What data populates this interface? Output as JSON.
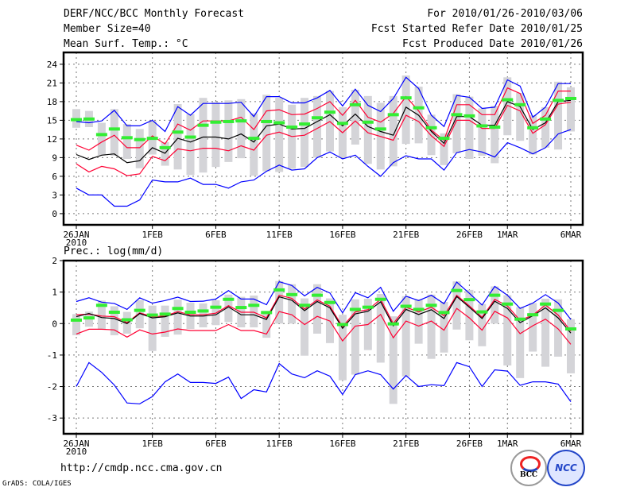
{
  "header": {
    "title": "DERF/NCC/BCC Monthly Forecast",
    "member_size": "Member Size=40",
    "variable": "Mean Surf. Temp.: °C",
    "period": "For 2010/01/26-2010/03/06",
    "started": "Fcst Started Refer Date 2010/01/25",
    "produced": "Fcst Produced Date 2010/01/26"
  },
  "precip_label": "Prec.: log(mm/d)",
  "footer": {
    "url": "http://cmdp.ncc.cma.gov.cn",
    "credit": "GrADS: COLA/IGES",
    "logo_bcc": "BCC",
    "logo_ncc": "NCC"
  },
  "colors": {
    "max_min": "#0000ff",
    "spread": "#ff0033",
    "mean": "#000000",
    "obs": "#33ee33",
    "box": "#d4d4d8"
  },
  "chart_data": [
    {
      "type": "line",
      "title": "Mean Surf. Temp.: °C",
      "x_start": "2010-01-26",
      "days": 40,
      "xticks": [
        {
          "day": 0,
          "label": "26JAN",
          "sub": "2010"
        },
        {
          "day": 6,
          "label": "1FEB"
        },
        {
          "day": 11,
          "label": "6FEB"
        },
        {
          "day": 16,
          "label": "11FEB"
        },
        {
          "day": 21,
          "label": "16FEB"
        },
        {
          "day": 26,
          "label": "21FEB"
        },
        {
          "day": 31,
          "label": "26FEB"
        },
        {
          "day": 34,
          "label": "1MAR"
        },
        {
          "day": 39,
          "label": "6MAR"
        }
      ],
      "yticks": [
        0,
        3,
        6,
        9,
        12,
        15,
        18,
        21,
        24
      ],
      "ylim": [
        -1.8,
        25.9
      ],
      "grid": true,
      "series": [
        {
          "name": "max",
          "color": "#0000ff",
          "values": [
            14.8,
            14.6,
            14.9,
            16.6,
            14.1,
            14.1,
            15.0,
            13.2,
            17.2,
            15.8,
            17.7,
            17.7,
            17.7,
            17.9,
            15.6,
            18.8,
            18.8,
            17.8,
            17.8,
            18.6,
            19.8,
            17.3,
            20.0,
            17.4,
            16.4,
            18.5,
            21.9,
            20.1,
            15.8,
            14.0,
            19.0,
            18.7,
            16.9,
            17.1,
            21.5,
            20.5,
            15.5,
            17.1,
            20.9,
            20.9
          ]
        },
        {
          "name": "upper",
          "color": "#ff0033",
          "values": [
            11.0,
            10.2,
            11.5,
            12.6,
            10.6,
            10.6,
            12.5,
            11.2,
            14.4,
            13.4,
            14.9,
            14.9,
            14.9,
            15.5,
            13.5,
            16.5,
            16.7,
            15.9,
            16.0,
            16.9,
            18.0,
            15.8,
            18.2,
            15.5,
            14.7,
            16.1,
            18.8,
            16.5,
            13.4,
            11.8,
            17.5,
            17.5,
            15.9,
            15.9,
            20.2,
            19.3,
            14.5,
            15.8,
            19.7,
            19.7
          ]
        },
        {
          "name": "mean",
          "color": "#000000",
          "values": [
            9.5,
            8.7,
            9.4,
            9.6,
            8.2,
            8.5,
            10.6,
            9.7,
            12.1,
            11.5,
            12.3,
            12.3,
            12.0,
            12.8,
            11.5,
            14.1,
            14.4,
            13.6,
            13.7,
            14.8,
            15.9,
            14.1,
            16.0,
            14.0,
            13.2,
            12.6,
            17.1,
            15.8,
            13.2,
            11.3,
            15.6,
            15.6,
            14.2,
            14.2,
            18.0,
            17.2,
            13.5,
            14.6,
            18.0,
            18.2
          ]
        },
        {
          "name": "lower",
          "color": "#ff0033",
          "values": [
            8.0,
            6.7,
            7.6,
            7.2,
            6.1,
            6.4,
            9.2,
            8.5,
            10.4,
            10.1,
            10.5,
            10.5,
            10.1,
            10.9,
            10.2,
            12.6,
            13.1,
            12.4,
            12.6,
            13.7,
            14.8,
            13.0,
            14.9,
            13.0,
            12.4,
            11.8,
            15.8,
            14.8,
            12.5,
            10.8,
            15.0,
            15.0,
            13.7,
            13.7,
            17.4,
            16.5,
            12.9,
            14.3,
            17.6,
            17.9
          ]
        },
        {
          "name": "min",
          "color": "#0000ff",
          "values": [
            4.1,
            3.0,
            3.0,
            1.2,
            1.2,
            2.2,
            5.4,
            5.1,
            5.1,
            5.7,
            4.7,
            4.7,
            4.1,
            5.1,
            5.4,
            6.8,
            7.8,
            7.0,
            7.2,
            9.0,
            9.9,
            8.8,
            9.4,
            7.6,
            6.0,
            8.2,
            9.3,
            8.8,
            8.8,
            7.0,
            9.8,
            10.3,
            9.9,
            9.1,
            11.4,
            10.6,
            9.6,
            10.6,
            12.8,
            13.5
          ]
        }
      ],
      "observed": [
        15.1,
        15.2,
        12.7,
        13.6,
        12.2,
        11.9,
        12.1,
        10.6,
        13.1,
        12.3,
        14.2,
        14.7,
        14.8,
        14.9,
        12.1,
        14.8,
        14.6,
        13.9,
        14.4,
        15.4,
        16.3,
        14.5,
        17.5,
        14.7,
        13.6,
        15.9,
        18.6,
        17.0,
        13.8,
        12.1,
        15.9,
        15.7,
        14.1,
        13.9,
        18.3,
        17.5,
        13.8,
        15.2,
        18.2,
        18.5
      ],
      "box_low": [
        13.8,
        13.9,
        9.4,
        9.3,
        8.8,
        7.3,
        9.5,
        7.7,
        7.1,
        6.2,
        6.6,
        7.5,
        8.3,
        8.9,
        6.1,
        6.8,
        6.7,
        7.2,
        7.5,
        9.0,
        10.0,
        9.0,
        11.1,
        8.0,
        7.1,
        7.6,
        11.2,
        11.3,
        9.4,
        7.8,
        9.7,
        8.8,
        9.3,
        8.1,
        12.6,
        11.7,
        9.5,
        10.6,
        10.3,
        13.2
      ],
      "box_high": [
        16.8,
        16.5,
        14.6,
        16.8,
        14.4,
        13.6,
        14.9,
        11.5,
        17.6,
        16.0,
        18.6,
        17.9,
        18.2,
        18.4,
        16.1,
        19.1,
        18.6,
        17.5,
        18.6,
        18.9,
        19.7,
        17.1,
        19.9,
        18.9,
        17.8,
        18.9,
        22.2,
        20.4,
        15.9,
        12.9,
        19.2,
        18.8,
        16.9,
        17.3,
        21.9,
        19.4,
        15.8,
        17.1,
        21.2,
        20.3
      ]
    },
    {
      "type": "line",
      "title": "Prec.: log(mm/d)",
      "x_start": "2010-01-26",
      "days": 40,
      "xticks": [
        {
          "day": 0,
          "label": "26JAN",
          "sub": "2010"
        },
        {
          "day": 6,
          "label": "1FEB"
        },
        {
          "day": 11,
          "label": "6FEB"
        },
        {
          "day": 16,
          "label": "11FEB"
        },
        {
          "day": 21,
          "label": "16FEB"
        },
        {
          "day": 26,
          "label": "21FEB"
        },
        {
          "day": 31,
          "label": "26FEB"
        },
        {
          "day": 34,
          "label": "1MAR"
        },
        {
          "day": 39,
          "label": "6MAR"
        }
      ],
      "yticks": [
        -3,
        -2,
        -1,
        0,
        1,
        2
      ],
      "ylim": [
        -3.5,
        2
      ],
      "grid": true,
      "series": [
        {
          "name": "max",
          "color": "#0000ff",
          "values": [
            0.7,
            0.82,
            0.68,
            0.64,
            0.45,
            0.82,
            0.65,
            0.73,
            0.84,
            0.7,
            0.71,
            0.78,
            1.05,
            0.78,
            0.78,
            0.6,
            1.33,
            1.21,
            0.88,
            1.15,
            0.97,
            0.34,
            0.98,
            0.82,
            1.15,
            0.39,
            0.87,
            0.73,
            0.9,
            0.63,
            1.32,
            0.96,
            0.59,
            1.18,
            0.9,
            0.48,
            0.65,
            0.92,
            0.65,
            0.13
          ]
        },
        {
          "name": "upper",
          "color": "#ff0033",
          "values": [
            0.28,
            0.3,
            0.24,
            0.22,
            0.03,
            0.34,
            0.22,
            0.24,
            0.38,
            0.28,
            0.28,
            0.33,
            0.57,
            0.36,
            0.36,
            0.18,
            0.9,
            0.8,
            0.46,
            0.75,
            0.55,
            -0.1,
            0.37,
            0.44,
            0.77,
            0.0,
            0.52,
            0.37,
            0.52,
            0.25,
            0.9,
            0.56,
            0.2,
            0.77,
            0.56,
            0.1,
            0.27,
            0.59,
            0.27,
            -0.24
          ]
        },
        {
          "name": "mean",
          "color": "#000000",
          "values": [
            0.22,
            0.32,
            0.19,
            0.16,
            0.0,
            0.32,
            0.18,
            0.22,
            0.34,
            0.24,
            0.24,
            0.28,
            0.53,
            0.28,
            0.28,
            0.13,
            0.85,
            0.74,
            0.41,
            0.7,
            0.5,
            -0.15,
            0.31,
            0.39,
            0.69,
            -0.07,
            0.45,
            0.29,
            0.44,
            0.16,
            0.86,
            0.52,
            0.16,
            0.71,
            0.48,
            0.03,
            0.25,
            0.5,
            0.18,
            -0.3
          ]
        },
        {
          "name": "lower",
          "color": "#ff0033",
          "values": [
            -0.33,
            -0.18,
            -0.18,
            -0.2,
            -0.43,
            -0.2,
            -0.33,
            -0.27,
            -0.17,
            -0.22,
            -0.22,
            -0.22,
            -0.03,
            -0.22,
            -0.22,
            -0.33,
            0.38,
            0.28,
            -0.03,
            0.23,
            0.08,
            -0.55,
            -0.08,
            -0.03,
            0.29,
            -0.45,
            0.08,
            -0.08,
            0.08,
            -0.21,
            0.48,
            0.18,
            -0.21,
            0.39,
            0.18,
            -0.32,
            -0.07,
            0.14,
            -0.17,
            -0.66
          ]
        },
        {
          "name": "min",
          "color": "#0000ff",
          "values": [
            -2.0,
            -1.24,
            -1.55,
            -1.95,
            -2.52,
            -2.55,
            -2.32,
            -1.85,
            -1.6,
            -1.87,
            -1.87,
            -1.9,
            -1.7,
            -2.38,
            -2.1,
            -2.17,
            -1.27,
            -1.6,
            -1.72,
            -1.5,
            -1.67,
            -2.25,
            -1.62,
            -1.5,
            -1.62,
            -2.08,
            -1.65,
            -2.0,
            -1.94,
            -1.97,
            -1.24,
            -1.37,
            -2.0,
            -1.47,
            -1.51,
            -1.96,
            -1.85,
            -1.85,
            -1.92,
            -2.48
          ]
        }
      ],
      "observed": [
        0.11,
        0.18,
        0.58,
        0.36,
        0.12,
        0.42,
        0.27,
        0.3,
        0.48,
        0.36,
        0.4,
        0.52,
        0.77,
        0.51,
        0.58,
        0.35,
        1.07,
        0.92,
        0.58,
        0.9,
        0.67,
        -0.03,
        0.45,
        0.52,
        0.77,
        -0.01,
        0.55,
        0.45,
        0.58,
        0.35,
        1.05,
        0.76,
        0.37,
        0.9,
        0.62,
        0.14,
        0.28,
        0.62,
        0.42,
        -0.17
      ],
      "box_low": [
        -0.37,
        -0.1,
        -0.17,
        -0.37,
        -0.32,
        -0.15,
        -0.87,
        -0.42,
        -0.35,
        -0.17,
        -0.12,
        -0.05,
        0.05,
        -0.12,
        -0.12,
        -0.45,
        0.0,
        0.0,
        -1.02,
        -0.32,
        -0.62,
        -1.8,
        -1.62,
        -0.84,
        -1.24,
        -2.55,
        -1.68,
        -0.64,
        -1.12,
        -0.92,
        -0.19,
        -0.53,
        -0.72,
        0.0,
        -1.33,
        -1.73,
        -0.89,
        -1.37,
        -1.05,
        -1.58
      ],
      "box_high": [
        0.3,
        0.38,
        0.73,
        0.55,
        0.37,
        0.75,
        0.57,
        0.57,
        0.76,
        0.66,
        0.64,
        0.74,
        0.92,
        0.85,
        0.89,
        0.4,
        1.35,
        1.25,
        0.8,
        1.25,
        0.8,
        0.28,
        0.77,
        0.79,
        0.94,
        0.23,
        0.87,
        0.77,
        0.92,
        0.69,
        1.34,
        1.07,
        0.62,
        1.18,
        0.9,
        0.52,
        0.65,
        0.79,
        0.77,
        0.14
      ]
    }
  ]
}
